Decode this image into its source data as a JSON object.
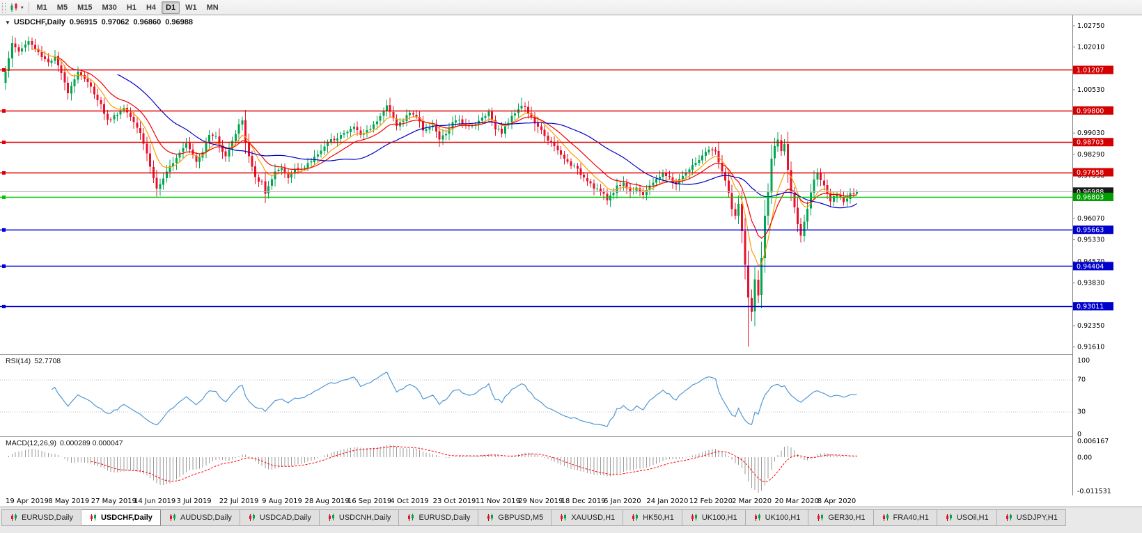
{
  "toolbar": {
    "timeframes": [
      "M1",
      "M5",
      "M15",
      "M30",
      "H1",
      "H4",
      "D1",
      "W1",
      "MN"
    ],
    "active_timeframe": "D1"
  },
  "title": {
    "symbol": "USDCHF,Daily",
    "open": "0.96915",
    "high": "0.97062",
    "low": "0.96860",
    "close": "0.96988"
  },
  "rsi_label": {
    "name": "RSI(14)",
    "value": "52.7708"
  },
  "macd_label": {
    "name": "MACD(12,26,9)",
    "values": "0.000289 0.000047"
  },
  "axis": {
    "price_ticks": [
      "1.02750",
      "1.02010",
      "1.00530",
      "0.99030",
      "0.98290",
      "0.97550",
      "0.96070",
      "0.95330",
      "0.94570",
      "0.93830",
      "0.92350",
      "0.91610"
    ],
    "rsi_ticks": [
      "100",
      "70",
      "30",
      "0"
    ],
    "macd_ticks": [
      "0.006167",
      "0.00",
      "-0.011531"
    ],
    "dates": [
      "19 Apr 2019",
      "8 May 2019",
      "27 May 2019",
      "14 Jun 2019",
      "3 Jul 2019",
      "22 Jul 2019",
      "9 Aug 2019",
      "28 Aug 2019",
      "16 Sep 2019",
      "4 Oct 2019",
      "23 Oct 2019",
      "11 Nov 2019",
      "29 Nov 2019",
      "18 Dec 2019",
      "6 Jan 2020",
      "24 Jan 2020",
      "12 Feb 2020",
      "2 Mar 2020",
      "20 Mar 2020",
      "8 Apr 2020"
    ]
  },
  "colors": {
    "candle_up": "#00a651",
    "candle_down": "#e8112d",
    "res_line": "#e00000",
    "sup_line": "#0000d8",
    "green_line": "#00c800",
    "bid_line": "#b8b8b8",
    "badge_red": "#d40000",
    "badge_blue": "#0000cc",
    "badge_green": "#00a000",
    "badge_black": "#1a1a1a",
    "rsi_line": "#4f97d7",
    "rsi_level": "#c0c0c0",
    "macd_bar": "#9a9a9a",
    "macd_signal": "#ff0000",
    "separator": "#a0a0a0",
    "axis_text": "#000000"
  },
  "chart_data": {
    "type": "candlestick",
    "symbol": "USDCHF",
    "period": "Daily",
    "last_ohlc": {
      "open": 0.96915,
      "high": 0.97062,
      "low": 0.9686,
      "close": 0.96988
    },
    "price_top": 1.031,
    "price_bottom": 0.9135,
    "candle_count": 260,
    "seed": 1337,
    "close_anchors": [
      [
        0,
        1.012
      ],
      [
        2,
        1.021
      ],
      [
        4,
        1.0185
      ],
      [
        7,
        1.022
      ],
      [
        10,
        1.018
      ],
      [
        13,
        1.0148
      ],
      [
        15,
        1.0165
      ],
      [
        17,
        1.0105
      ],
      [
        19,
        1.0045
      ],
      [
        22,
        1.0115
      ],
      [
        24,
        1.009
      ],
      [
        26,
        1.006
      ],
      [
        29,
        1.0
      ],
      [
        31,
        0.9945
      ],
      [
        33,
        0.996
      ],
      [
        36,
        0.999
      ],
      [
        39,
        0.9945
      ],
      [
        41,
        0.9905
      ],
      [
        43,
        0.983
      ],
      [
        45,
        0.9745
      ],
      [
        46,
        0.971
      ],
      [
        48,
        0.974
      ],
      [
        50,
        0.9785
      ],
      [
        52,
        0.982
      ],
      [
        55,
        0.987
      ],
      [
        58,
        0.9805
      ],
      [
        60,
        0.984
      ],
      [
        62,
        0.9895
      ],
      [
        64,
        0.989
      ],
      [
        65,
        0.986
      ],
      [
        67,
        0.9825
      ],
      [
        69,
        0.987
      ],
      [
        71,
        0.9935
      ],
      [
        72,
        0.9945
      ],
      [
        73,
        0.987
      ],
      [
        74,
        0.982
      ],
      [
        76,
        0.9745
      ],
      [
        78,
        0.973
      ],
      [
        79,
        0.969
      ],
      [
        80,
        0.972
      ],
      [
        82,
        0.9765
      ],
      [
        84,
        0.9775
      ],
      [
        86,
        0.9745
      ],
      [
        88,
        0.978
      ],
      [
        91,
        0.978
      ],
      [
        93,
        0.9805
      ],
      [
        96,
        0.9845
      ],
      [
        99,
        0.9875
      ],
      [
        102,
        0.9895
      ],
      [
        104,
        0.9905
      ],
      [
        106,
        0.9925
      ],
      [
        108,
        0.9895
      ],
      [
        110,
        0.991
      ],
      [
        112,
        0.993
      ],
      [
        114,
        0.9965
      ],
      [
        116,
        0.9995
      ],
      [
        117,
        0.9975
      ],
      [
        119,
        0.993
      ],
      [
        121,
        0.9945
      ],
      [
        123,
        0.9975
      ],
      [
        125,
        0.996
      ],
      [
        127,
        0.9915
      ],
      [
        130,
        0.9925
      ],
      [
        132,
        0.988
      ],
      [
        134,
        0.99
      ],
      [
        136,
        0.9935
      ],
      [
        138,
        0.995
      ],
      [
        140,
        0.993
      ],
      [
        143,
        0.993
      ],
      [
        145,
        0.9955
      ],
      [
        147,
        0.9975
      ],
      [
        149,
        0.992
      ],
      [
        151,
        0.9905
      ],
      [
        153,
        0.994
      ],
      [
        155,
        0.9975
      ],
      [
        157,
        1.0
      ],
      [
        158,
        0.999
      ],
      [
        160,
        0.9955
      ],
      [
        162,
        0.992
      ],
      [
        164,
        0.9895
      ],
      [
        166,
        0.9865
      ],
      [
        168,
        0.984
      ],
      [
        169,
        0.9825
      ],
      [
        171,
        0.98
      ],
      [
        173,
        0.9785
      ],
      [
        175,
        0.976
      ],
      [
        177,
        0.974
      ],
      [
        179,
        0.9715
      ],
      [
        181,
        0.97
      ],
      [
        183,
        0.967
      ],
      [
        184,
        0.9685
      ],
      [
        186,
        0.9715
      ],
      [
        188,
        0.973
      ],
      [
        190,
        0.9695
      ],
      [
        192,
        0.9715
      ],
      [
        194,
        0.969
      ],
      [
        196,
        0.9715
      ],
      [
        198,
        0.9745
      ],
      [
        200,
        0.976
      ],
      [
        202,
        0.9745
      ],
      [
        204,
        0.9725
      ],
      [
        206,
        0.9755
      ],
      [
        208,
        0.9775
      ],
      [
        210,
        0.98
      ],
      [
        212,
        0.982
      ],
      [
        214,
        0.9842
      ],
      [
        216,
        0.9835
      ],
      [
        218,
        0.977
      ],
      [
        220,
        0.9695
      ],
      [
        221,
        0.964
      ],
      [
        222,
        0.961
      ],
      [
        223,
        0.9655
      ],
      [
        224,
        0.956
      ],
      [
        225,
        0.945
      ],
      [
        226,
        0.933
      ],
      [
        227,
        0.928
      ],
      [
        228,
        0.939
      ],
      [
        229,
        0.934
      ],
      [
        230,
        0.947
      ],
      [
        231,
        0.961
      ],
      [
        232,
        0.97
      ],
      [
        233,
        0.981
      ],
      [
        234,
        0.9855
      ],
      [
        235,
        0.988
      ],
      [
        236,
        0.984
      ],
      [
        237,
        0.986
      ],
      [
        238,
        0.978
      ],
      [
        239,
        0.97
      ],
      [
        240,
        0.964
      ],
      [
        241,
        0.958
      ],
      [
        242,
        0.9545
      ],
      [
        243,
        0.959
      ],
      [
        244,
        0.964
      ],
      [
        245,
        0.969
      ],
      [
        246,
        0.9745
      ],
      [
        247,
        0.9765
      ],
      [
        249,
        0.972
      ],
      [
        251,
        0.9665
      ],
      [
        253,
        0.969
      ],
      [
        255,
        0.966
      ],
      [
        257,
        0.9695
      ],
      [
        259,
        0.96988
      ]
    ],
    "high_overrides": {
      "7": 1.0227,
      "72": 0.9951,
      "116": 1.0005,
      "157": 1.0024,
      "235": 0.9901,
      "247": 0.9776
    },
    "low_overrides": {
      "46": 0.9693,
      "79": 0.9659,
      "183": 0.9661,
      "226": 0.9161,
      "242": 0.9522
    },
    "moving_averages": [
      {
        "type": "ema",
        "period": 8,
        "color": "#ff9c00"
      },
      {
        "type": "ema",
        "period": 16,
        "color": "#f00000"
      },
      {
        "type": "sma",
        "period": 34,
        "color": "#0000c8"
      }
    ],
    "rsi": {
      "period": 14,
      "dotted_levels": [
        70,
        30
      ],
      "range": [
        0,
        100
      ],
      "current": 52.7708
    },
    "macd": {
      "fast": 12,
      "slow": 26,
      "signal": 9,
      "scale_max": 0.006167,
      "scale_min": -0.011531,
      "current": [
        0.000289,
        4.7e-05
      ]
    },
    "levels": {
      "red": [
        1.01207,
        0.998,
        0.98703,
        0.97658
      ],
      "blue": [
        0.95663,
        0.94404,
        0.93011
      ],
      "green": 0.96803,
      "bid": 0.96988
    }
  },
  "tabs": [
    {
      "label": "EURUSD,Daily",
      "active": false
    },
    {
      "label": "USDCHF,Daily",
      "active": true
    },
    {
      "label": "AUDUSD,Daily",
      "active": false
    },
    {
      "label": "USDCAD,Daily",
      "active": false
    },
    {
      "label": "USDCNH,Daily",
      "active": false
    },
    {
      "label": "EURUSD,Daily",
      "active": false
    },
    {
      "label": "GBPUSD,M5",
      "active": false
    },
    {
      "label": "XAUUSD,H1",
      "active": false
    },
    {
      "label": "HK50,H1",
      "active": false
    },
    {
      "label": "UK100,H1",
      "active": false
    },
    {
      "label": "UK100,H1",
      "active": false
    },
    {
      "label": "GER30,H1",
      "active": false
    },
    {
      "label": "FRA40,H1",
      "active": false
    },
    {
      "label": "USOil,H1",
      "active": false
    },
    {
      "label": "USDJPY,H1",
      "active": false
    }
  ]
}
